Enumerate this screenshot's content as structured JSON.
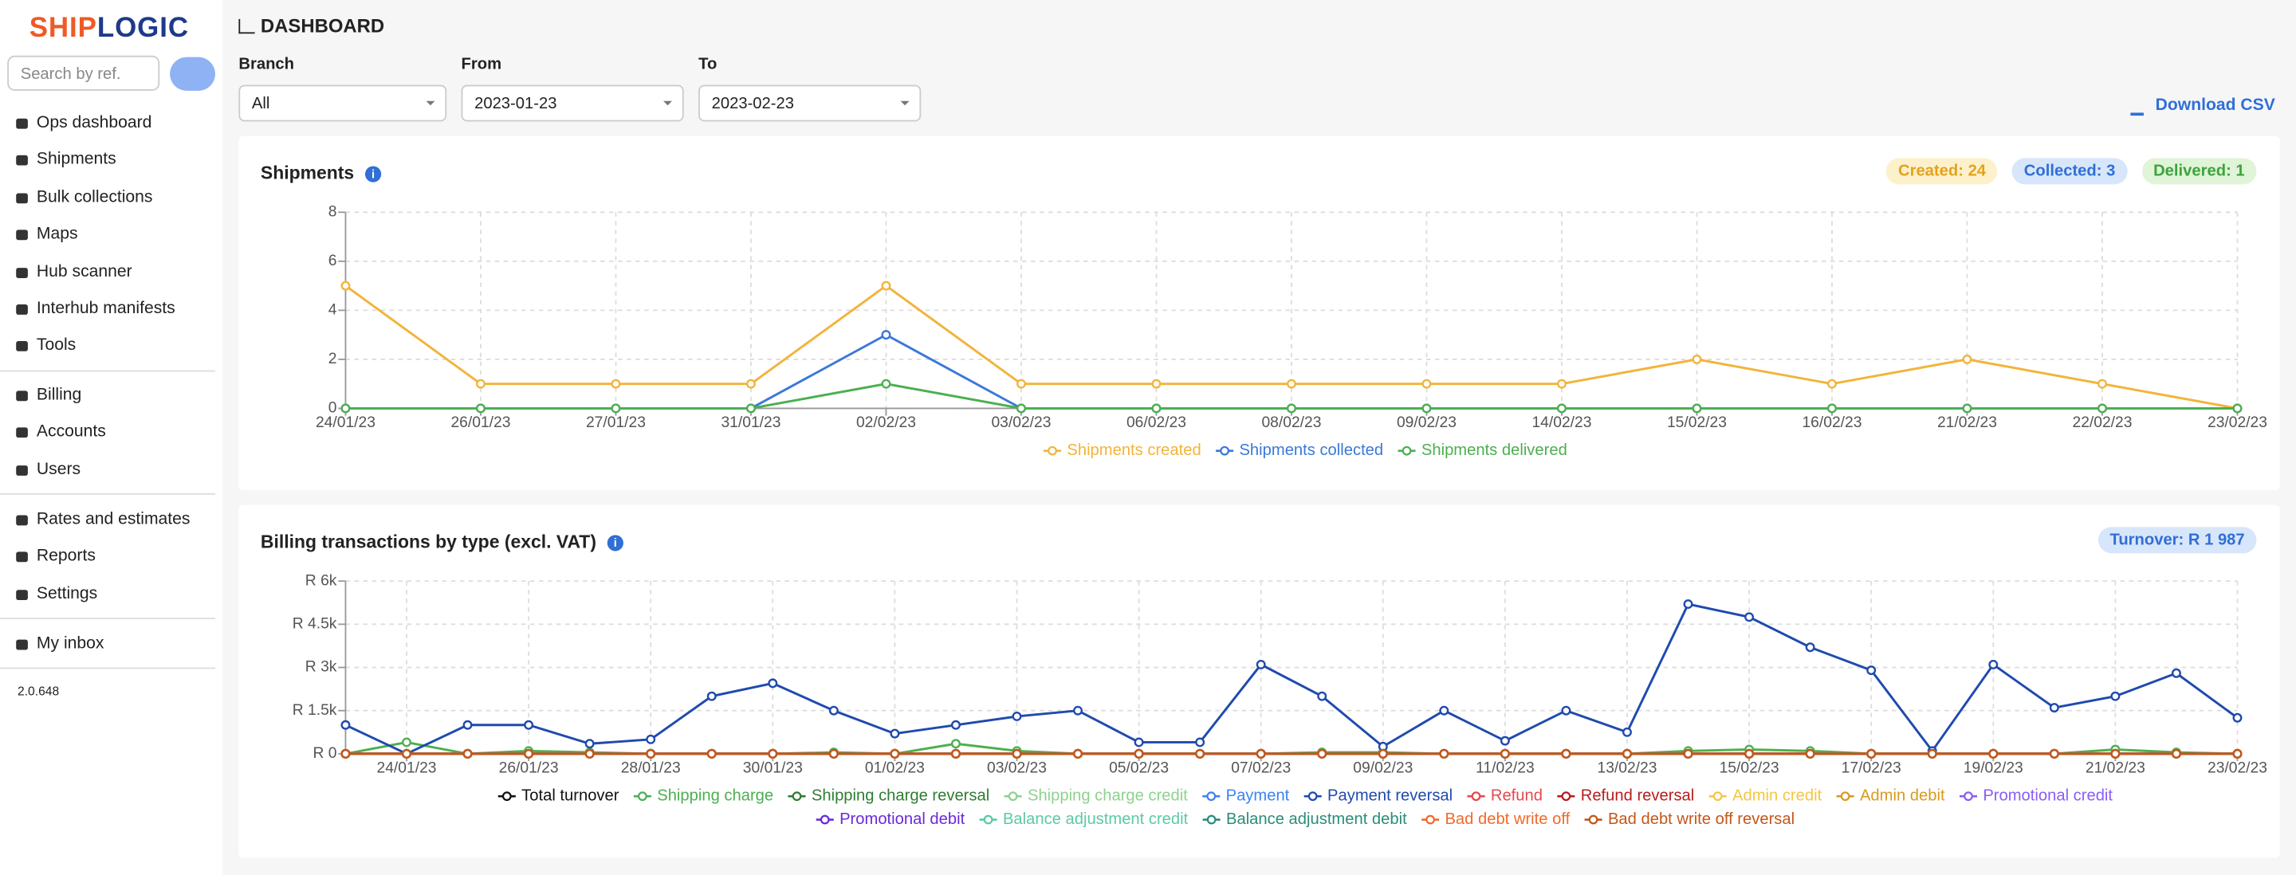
{
  "sidebar": {
    "logo": [
      "SHIP",
      "LOGIC"
    ],
    "search_placeholder": "Search by ref.",
    "nav_groups": [
      [
        "Ops dashboard",
        "Shipments",
        "Bulk collections",
        "Maps",
        "Hub scanner",
        "Interhub manifests",
        "Tools"
      ],
      [
        "Billing",
        "Accounts",
        "Users"
      ],
      [
        "Rates and estimates",
        "Reports",
        "Settings"
      ],
      [
        "My inbox"
      ]
    ],
    "version": "2.0.648"
  },
  "header": {
    "title": "DASHBOARD"
  },
  "filters": [
    {
      "label": "Branch",
      "value": "All"
    },
    {
      "label": "From",
      "value": "2023-01-23"
    },
    {
      "label": "To",
      "value": "2023-02-23"
    }
  ],
  "download": "Download CSV",
  "chart_data": [
    {
      "type": "line",
      "title": "Shipments",
      "badges": [
        "Created: 24",
        "Collected: 3",
        "Delivered: 1"
      ],
      "categories": [
        "24/01/23",
        "26/01/23",
        "27/01/23",
        "31/01/23",
        "02/02/23",
        "03/02/23",
        "06/02/23",
        "08/02/23",
        "09/02/23",
        "14/02/23",
        "15/02/23",
        "16/02/23",
        "21/02/23",
        "22/02/23",
        "23/02/23"
      ],
      "ylim": [
        0,
        8
      ],
      "yticks": [
        0,
        2,
        4,
        6,
        8
      ],
      "grid": true,
      "series": [
        {
          "name": "Shipments created",
          "color": "#f2b43a",
          "values": [
            5,
            1,
            1,
            1,
            5,
            1,
            1,
            1,
            1,
            1,
            2,
            1,
            2,
            1,
            0
          ]
        },
        {
          "name": "Shipments collected",
          "color": "#3a78d8",
          "values": [
            0,
            0,
            0,
            0,
            3,
            0,
            0,
            0,
            0,
            0,
            0,
            0,
            0,
            0,
            0
          ]
        },
        {
          "name": "Shipments delivered",
          "color": "#4caf50",
          "values": [
            0,
            0,
            0,
            0,
            1,
            0,
            0,
            0,
            0,
            0,
            0,
            0,
            0,
            0,
            0
          ]
        }
      ]
    },
    {
      "type": "line",
      "title": "Billing transactions by type (excl. VAT)",
      "badges": [
        "Turnover: R 1 987"
      ],
      "categories": [
        null,
        "24/01/23",
        null,
        "26/01/23",
        null,
        "28/01/23",
        null,
        "30/01/23",
        null,
        "01/02/23",
        null,
        "03/02/23",
        null,
        "05/02/23",
        null,
        "07/02/23",
        null,
        "09/02/23",
        null,
        "11/02/23",
        null,
        "13/02/23",
        null,
        "15/02/23",
        null,
        "17/02/23",
        null,
        "19/02/23",
        null,
        "21/02/23",
        null,
        "23/02/23"
      ],
      "ylim": [
        0,
        6000
      ],
      "yticks": [
        {
          "value": 0,
          "label": "R 0"
        },
        {
          "value": 1500,
          "label": "R 1.5k"
        },
        {
          "value": 3000,
          "label": "R 3k"
        },
        {
          "value": 4500,
          "label": "R 4.5k"
        },
        {
          "value": 6000,
          "label": "R 6k"
        }
      ],
      "grid": true,
      "series": [
        {
          "name": "Total turnover",
          "color": "#111111",
          "values": [
            0,
            0,
            0,
            0,
            0,
            0,
            0,
            0,
            0,
            0,
            0,
            0,
            0,
            0,
            0,
            0,
            0,
            0,
            0,
            0,
            0,
            0,
            0,
            0,
            0,
            0,
            0,
            0,
            0,
            0,
            0,
            0
          ]
        },
        {
          "name": "Shipping charge",
          "color": "#4caf50",
          "values": [
            0,
            400,
            0,
            100,
            50,
            0,
            0,
            0,
            50,
            0,
            350,
            100,
            0,
            0,
            0,
            0,
            50,
            50,
            0,
            0,
            0,
            0,
            100,
            150,
            100,
            0,
            0,
            0,
            0,
            150,
            50,
            0
          ]
        },
        {
          "name": "Shipping charge reversal",
          "color": "#2e7d32",
          "values": [
            0,
            0,
            0,
            0,
            0,
            0,
            0,
            0,
            0,
            0,
            0,
            0,
            0,
            0,
            0,
            0,
            0,
            0,
            0,
            0,
            0,
            0,
            0,
            0,
            0,
            0,
            0,
            0,
            0,
            0,
            0,
            0
          ]
        },
        {
          "name": "Shipping charge credit",
          "color": "#8fd18f",
          "values": [
            0,
            0,
            0,
            0,
            0,
            0,
            0,
            0,
            0,
            0,
            0,
            0,
            0,
            0,
            0,
            0,
            0,
            0,
            0,
            0,
            0,
            0,
            0,
            0,
            0,
            0,
            0,
            0,
            0,
            0,
            0,
            0
          ]
        },
        {
          "name": "Payment",
          "color": "#3b82f6",
          "values": [
            0,
            0,
            0,
            0,
            0,
            0,
            0,
            0,
            0,
            0,
            0,
            0,
            0,
            0,
            0,
            0,
            0,
            0,
            0,
            0,
            0,
            0,
            0,
            0,
            0,
            0,
            0,
            0,
            0,
            0,
            0,
            0
          ]
        },
        {
          "name": "Payment reversal",
          "color": "#1f4aae",
          "values": [
            1000,
            0,
            1000,
            1000,
            350,
            500,
            2000,
            2450,
            1500,
            700,
            1000,
            1300,
            1500,
            400,
            400,
            3100,
            2000,
            250,
            1500,
            450,
            1500,
            750,
            5200,
            4750,
            3700,
            2900,
            100,
            3100,
            1600,
            2000,
            2800,
            1250
          ]
        },
        {
          "name": "Refund",
          "color": "#e5484d",
          "values": [
            0,
            0,
            0,
            0,
            0,
            0,
            0,
            0,
            0,
            0,
            0,
            0,
            0,
            0,
            0,
            0,
            0,
            0,
            0,
            0,
            0,
            0,
            0,
            0,
            0,
            0,
            0,
            0,
            0,
            0,
            0,
            0
          ]
        },
        {
          "name": "Refund reversal",
          "color": "#b91c1c",
          "values": [
            0,
            0,
            0,
            0,
            0,
            0,
            0,
            0,
            0,
            0,
            0,
            0,
            0,
            0,
            0,
            0,
            0,
            0,
            0,
            0,
            0,
            0,
            0,
            0,
            0,
            0,
            0,
            0,
            0,
            0,
            0,
            0
          ]
        },
        {
          "name": "Admin credit",
          "color": "#f5c542",
          "values": [
            0,
            0,
            0,
            0,
            0,
            0,
            0,
            0,
            0,
            0,
            0,
            0,
            0,
            0,
            0,
            0,
            0,
            0,
            0,
            0,
            0,
            0,
            0,
            0,
            0,
            0,
            0,
            0,
            0,
            0,
            0,
            0
          ]
        },
        {
          "name": "Admin debit",
          "color": "#d99a1e",
          "values": [
            0,
            0,
            0,
            0,
            0,
            0,
            0,
            0,
            0,
            0,
            0,
            0,
            0,
            0,
            0,
            0,
            0,
            0,
            0,
            0,
            0,
            0,
            0,
            0,
            0,
            0,
            0,
            0,
            0,
            0,
            0,
            0
          ]
        },
        {
          "name": "Promotional credit",
          "color": "#8b5cf6",
          "values": [
            0,
            0,
            0,
            0,
            0,
            0,
            0,
            0,
            0,
            0,
            0,
            0,
            0,
            0,
            0,
            0,
            0,
            0,
            0,
            0,
            0,
            0,
            0,
            0,
            0,
            0,
            0,
            0,
            0,
            0,
            0,
            0
          ]
        },
        {
          "name": "Promotional debit",
          "color": "#6d28d9",
          "values": [
            0,
            0,
            0,
            0,
            0,
            0,
            0,
            0,
            0,
            0,
            0,
            0,
            0,
            0,
            0,
            0,
            0,
            0,
            0,
            0,
            0,
            0,
            0,
            0,
            0,
            0,
            0,
            0,
            0,
            0,
            0,
            0
          ]
        },
        {
          "name": "Balance adjustment credit",
          "color": "#5cc9a7",
          "values": [
            0,
            0,
            0,
            0,
            0,
            0,
            0,
            0,
            0,
            0,
            0,
            0,
            0,
            0,
            0,
            0,
            0,
            0,
            0,
            0,
            0,
            0,
            0,
            0,
            0,
            0,
            0,
            0,
            0,
            0,
            0,
            0
          ]
        },
        {
          "name": "Balance adjustment debit",
          "color": "#2a8c7a",
          "values": [
            0,
            0,
            0,
            0,
            0,
            0,
            0,
            0,
            0,
            0,
            0,
            0,
            0,
            0,
            0,
            0,
            0,
            0,
            0,
            0,
            0,
            0,
            0,
            0,
            0,
            0,
            0,
            0,
            0,
            0,
            0,
            0
          ]
        },
        {
          "name": "Bad debt write off",
          "color": "#f06a2a",
          "values": [
            0,
            0,
            0,
            0,
            0,
            0,
            0,
            0,
            0,
            0,
            0,
            0,
            0,
            0,
            0,
            0,
            0,
            0,
            0,
            0,
            0,
            0,
            0,
            0,
            0,
            0,
            0,
            0,
            0,
            0,
            0,
            0
          ]
        },
        {
          "name": "Bad debt write off reversal",
          "color": "#c2571a",
          "values": [
            0,
            0,
            0,
            0,
            0,
            0,
            0,
            0,
            0,
            0,
            0,
            0,
            0,
            0,
            0,
            0,
            0,
            0,
            0,
            0,
            0,
            0,
            0,
            0,
            0,
            0,
            0,
            0,
            0,
            0,
            0,
            0
          ]
        }
      ]
    }
  ]
}
